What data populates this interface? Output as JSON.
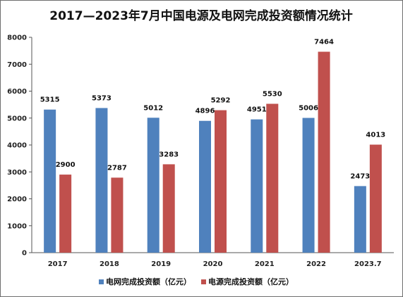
{
  "chart_data": {
    "type": "bar",
    "title": "2017—2023年7月中国电源及电网完成投资额情况统计",
    "categories": [
      "2017",
      "2018",
      "2019",
      "2020",
      "2021",
      "2022",
      "2023.7"
    ],
    "series": [
      {
        "name": "电网完成投资额（亿元）",
        "color": "#4f81bd",
        "values": [
          5315,
          5373,
          5012,
          4896,
          4951,
          5006,
          2473
        ]
      },
      {
        "name": "电源完成投资额（亿元）",
        "color": "#c0504d",
        "values": [
          2900,
          2787,
          3283,
          5292,
          5530,
          7464,
          4013
        ]
      }
    ],
    "ylim": [
      0,
      8000
    ],
    "yticks": [
      0,
      1000,
      2000,
      3000,
      4000,
      5000,
      6000,
      7000,
      8000
    ],
    "grid": false,
    "legend": "bottom"
  }
}
